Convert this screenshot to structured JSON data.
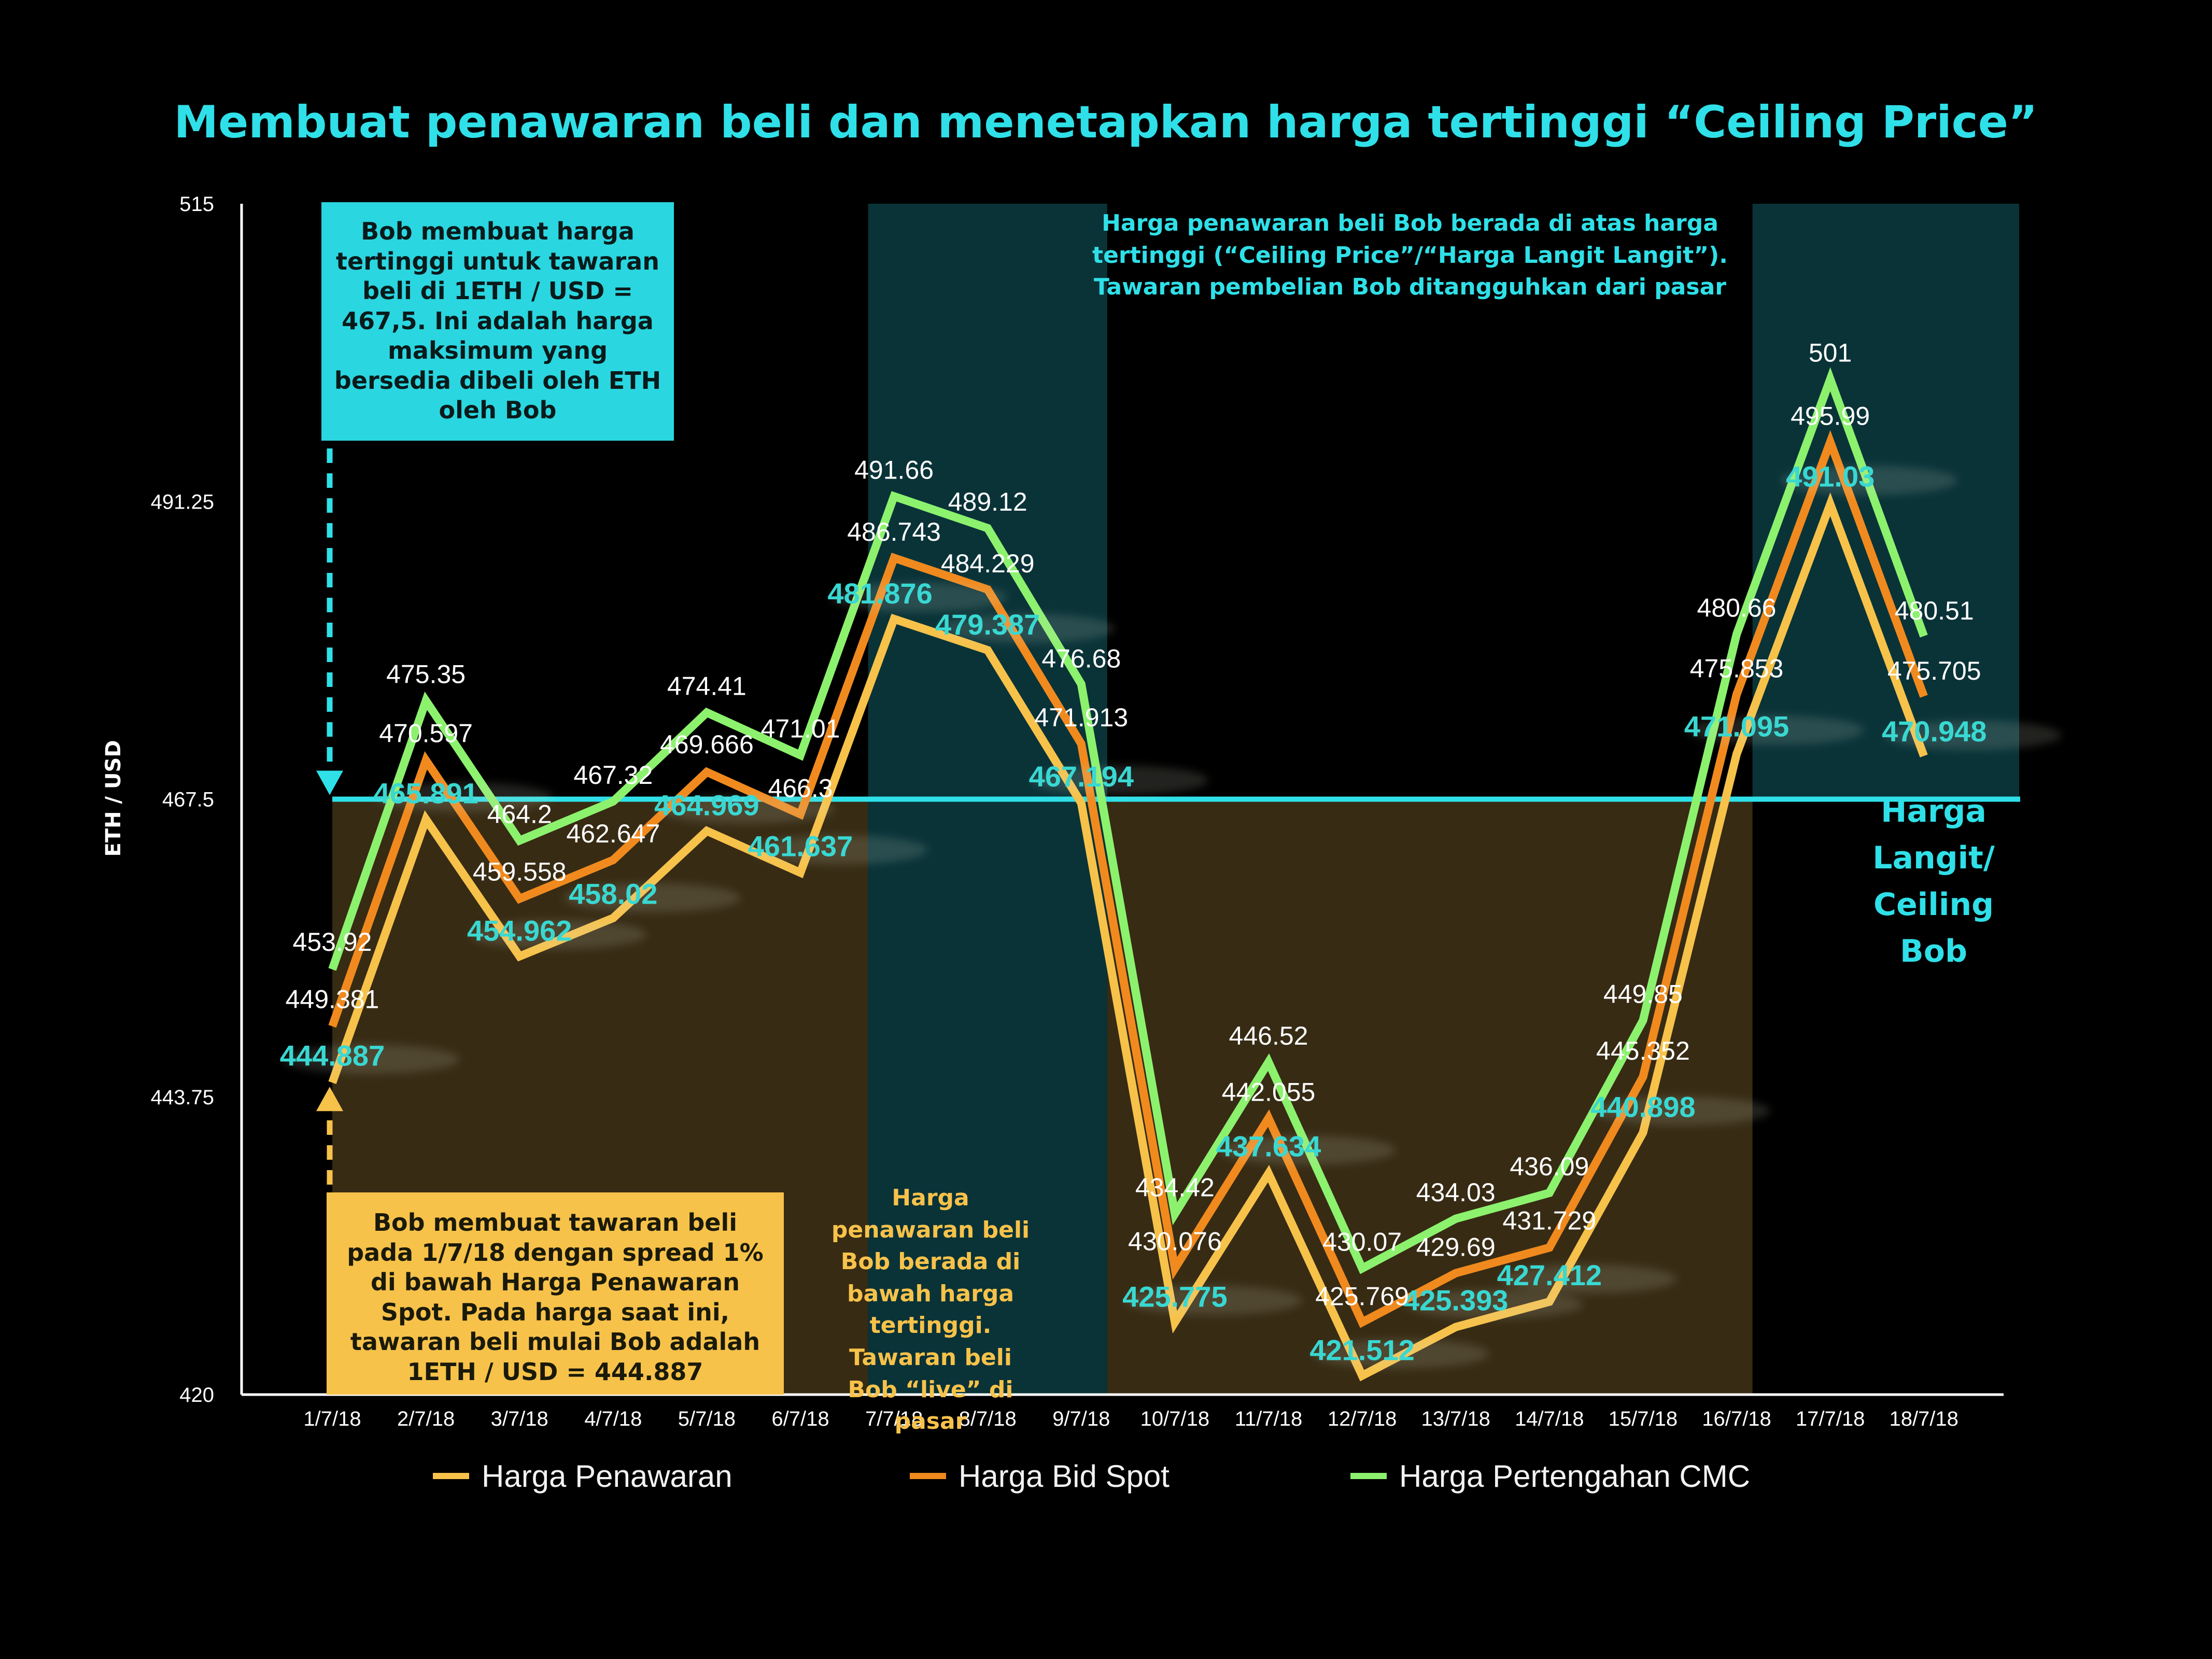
{
  "title": "Membuat penawaran beli dan menetapkan harga tertinggi “Ceiling Price”",
  "colors": {
    "background": "#000000",
    "cyan": "#2fe0e8",
    "offer": "#f7c24a",
    "bid": "#f08a1e",
    "mid": "#8cf26e",
    "brownZone": "#372b14",
    "tealZone": "#0a3338"
  },
  "annotations": {
    "top_box": "Bob membuat harga tertinggi untuk tawaran beli di 1ETH / USD = 467,5. Ini adalah harga maksimum yang bersedia dibeli oleh ETH oleh Bob",
    "bottom_box": "Bob membuat tawaran beli pada 1/7/18 dengan spread 1% di bawah Harga Penawaran Spot. Pada harga saat ini, tawaran beli mulai Bob adalah 1ETH / USD = 444.887",
    "above_note": "Harga penawaran beli Bob berada di atas harga tertinggi (“Ceiling Price”/“Harga Langit Langit”). Tawaran pembelian Bob ditangguhkan dari pasar",
    "below_note": "Harga penawaran beli Bob berada di bawah harga tertinggi. Tawaran beli Bob “live” di pasar",
    "ceiling_label": "Harga Langit/ Ceiling Bob"
  },
  "chart_data": {
    "type": "line",
    "title": "Membuat penawaran beli dan menetapkan harga tertinggi “Ceiling Price”",
    "xlabel": "",
    "ylabel": "ETH / USD",
    "ylim": [
      420,
      515
    ],
    "yticks": [
      "420",
      "443.75",
      "467.5",
      "491.25",
      "515"
    ],
    "categories": [
      "1/7/18",
      "2/7/18",
      "3/7/18",
      "4/7/18",
      "5/7/18",
      "6/7/18",
      "7/7/18",
      "8/7/18",
      "9/7/18",
      "10/7/18",
      "11/7/18",
      "12/7/18",
      "13/7/18",
      "14/7/18",
      "15/7/18",
      "16/7/18",
      "17/7/18",
      "18/7/18"
    ],
    "ceiling": 467.5,
    "legend_position": "bottom",
    "grid": false,
    "series": [
      {
        "name": "Harga Penawaran",
        "color": "#f7c24a",
        "values": [
          444.887,
          465.891,
          454.962,
          458.02,
          464.969,
          461.637,
          481.876,
          479.387,
          467.194,
          425.775,
          437.634,
          421.512,
          425.393,
          427.412,
          440.898,
          471.095,
          491.03,
          470.948
        ],
        "labels": [
          "444.887",
          "465.891",
          "454.962",
          "458.02",
          "464.969",
          "461.637",
          "481.876",
          "479.387",
          "467.194",
          "425.775",
          "437.634",
          "421.512",
          "425.393",
          "427.412",
          "440.898",
          "471.095",
          "491.03",
          "470.948"
        ]
      },
      {
        "name": "Harga Bid Spot",
        "color": "#f08a1e",
        "values": [
          449.381,
          470.597,
          459.558,
          462.647,
          469.666,
          466.3,
          486.743,
          484.229,
          471.913,
          430.076,
          442.055,
          425.769,
          429.69,
          431.729,
          445.352,
          475.853,
          495.99,
          475.705
        ],
        "labels": [
          "449.381",
          "470.597",
          "459.558",
          "462.647",
          "469.666",
          "466.3",
          "486.743",
          "484.229",
          "471.913",
          "430.076",
          "442.055",
          "425.769",
          "429.69",
          "431.729",
          "445.352",
          "475.853",
          "495.99",
          "475.705"
        ]
      },
      {
        "name": "Harga Pertengahan CMC",
        "color": "#8cf26e",
        "values": [
          453.92,
          475.35,
          464.2,
          467.32,
          474.41,
          471.01,
          491.66,
          489.12,
          476.68,
          434.42,
          446.52,
          430.07,
          434.03,
          436.09,
          449.85,
          480.66,
          501,
          480.51
        ],
        "labels": [
          "453.92",
          "475.35",
          "464.2",
          "467.32",
          "474.41",
          "471.01",
          "491.66",
          "489.12",
          "476.68",
          "434.42",
          "446.52",
          "430.07",
          "434.03",
          "436.09",
          "449.85",
          "480.66",
          "501",
          "480.51"
        ]
      }
    ]
  }
}
